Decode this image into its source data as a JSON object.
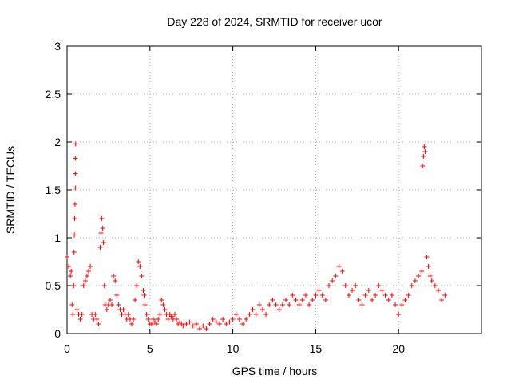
{
  "chart_data": {
    "type": "scatter",
    "title": "Day 228 of 2024, SRMTID for receiver ucor",
    "xlabel": "GPS time / hours",
    "ylabel": "SRMTID / TECUs",
    "xlim": [
      0,
      25
    ],
    "ylim": [
      0,
      3
    ],
    "xticks": [
      0,
      5,
      10,
      15,
      20
    ],
    "yticks": [
      0,
      0.5,
      1,
      1.5,
      2,
      2.5,
      3
    ],
    "xtick_labels": [
      "0",
      "5",
      "10",
      "15",
      "20"
    ],
    "ytick_labels": [
      "0",
      "0.5",
      "1",
      "1.5",
      "2",
      "2.5",
      "3"
    ],
    "grid": true,
    "marker": "+",
    "series": [
      {
        "name": "SRMTID",
        "color": "#ff0000",
        "x": [
          0.0,
          0.1,
          0.2,
          0.25,
          0.3,
          0.35,
          0.4,
          0.42,
          0.44,
          0.46,
          0.48,
          0.5,
          0.5,
          0.5,
          0.52,
          0.6,
          0.7,
          0.8,
          0.9,
          1.0,
          1.1,
          1.2,
          1.3,
          1.4,
          1.5,
          1.6,
          1.7,
          1.8,
          1.9,
          2.0,
          2.05,
          2.1,
          2.15,
          2.2,
          2.25,
          2.3,
          2.4,
          2.5,
          2.6,
          2.7,
          2.8,
          2.9,
          3.0,
          3.1,
          3.2,
          3.3,
          3.4,
          3.5,
          3.6,
          3.7,
          3.8,
          3.9,
          4.0,
          4.1,
          4.2,
          4.3,
          4.4,
          4.5,
          4.6,
          4.65,
          4.7,
          4.8,
          4.9,
          5.0,
          5.1,
          5.2,
          5.3,
          5.4,
          5.5,
          5.6,
          5.7,
          5.8,
          5.9,
          6.0,
          6.1,
          6.2,
          6.3,
          6.4,
          6.5,
          6.6,
          6.7,
          6.8,
          6.9,
          7.0,
          7.2,
          7.4,
          7.6,
          7.8,
          8.0,
          8.2,
          8.4,
          8.6,
          8.8,
          9.0,
          9.2,
          9.4,
          9.6,
          9.8,
          10.0,
          10.2,
          10.4,
          10.6,
          10.8,
          11.0,
          11.2,
          11.4,
          11.6,
          11.8,
          12.0,
          12.2,
          12.4,
          12.6,
          12.8,
          13.0,
          13.2,
          13.4,
          13.6,
          13.8,
          14.0,
          14.2,
          14.4,
          14.6,
          14.8,
          15.0,
          15.2,
          15.4,
          15.6,
          15.8,
          16.0,
          16.2,
          16.4,
          16.6,
          16.8,
          17.0,
          17.2,
          17.4,
          17.6,
          17.8,
          18.0,
          18.2,
          18.4,
          18.6,
          18.8,
          19.0,
          19.2,
          19.4,
          19.6,
          19.8,
          20.0,
          20.2,
          20.4,
          20.6,
          20.8,
          21.0,
          21.2,
          21.4,
          21.45,
          21.5,
          21.55,
          21.6,
          21.7,
          21.8,
          21.9,
          22.0,
          22.2,
          22.4,
          22.6,
          22.8
        ],
        "y": [
          0.8,
          0.7,
          0.6,
          0.65,
          0.3,
          0.2,
          0.5,
          0.85,
          1.03,
          1.2,
          1.35,
          1.52,
          1.67,
          1.83,
          1.98,
          0.25,
          0.2,
          0.15,
          0.2,
          0.5,
          0.55,
          0.6,
          0.65,
          0.7,
          0.2,
          0.15,
          0.2,
          0.15,
          0.1,
          0.9,
          1.05,
          1.2,
          1.1,
          0.95,
          0.5,
          0.3,
          0.25,
          0.3,
          0.35,
          0.3,
          0.6,
          0.55,
          0.4,
          0.3,
          0.25,
          0.2,
          0.25,
          0.2,
          0.15,
          0.2,
          0.15,
          0.1,
          0.15,
          0.35,
          0.5,
          0.75,
          0.7,
          0.6,
          0.45,
          0.4,
          0.3,
          0.2,
          0.15,
          0.1,
          0.1,
          0.15,
          0.12,
          0.1,
          0.15,
          0.2,
          0.35,
          0.3,
          0.25,
          0.2,
          0.15,
          0.2,
          0.18,
          0.15,
          0.2,
          0.15,
          0.1,
          0.12,
          0.1,
          0.08,
          0.1,
          0.12,
          0.08,
          0.1,
          0.05,
          0.08,
          0.05,
          0.1,
          0.15,
          0.12,
          0.1,
          0.15,
          0.1,
          0.12,
          0.15,
          0.2,
          0.15,
          0.1,
          0.15,
          0.2,
          0.25,
          0.2,
          0.3,
          0.25,
          0.2,
          0.3,
          0.35,
          0.3,
          0.25,
          0.3,
          0.35,
          0.3,
          0.4,
          0.35,
          0.3,
          0.35,
          0.4,
          0.3,
          0.35,
          0.4,
          0.45,
          0.4,
          0.35,
          0.5,
          0.55,
          0.6,
          0.7,
          0.65,
          0.5,
          0.4,
          0.45,
          0.5,
          0.35,
          0.3,
          0.4,
          0.45,
          0.35,
          0.4,
          0.5,
          0.45,
          0.4,
          0.35,
          0.4,
          0.3,
          0.2,
          0.3,
          0.35,
          0.4,
          0.5,
          0.55,
          0.6,
          0.65,
          1.75,
          1.85,
          1.95,
          1.9,
          0.8,
          0.7,
          0.6,
          0.55,
          0.5,
          0.45,
          0.35,
          0.4
        ]
      }
    ]
  }
}
